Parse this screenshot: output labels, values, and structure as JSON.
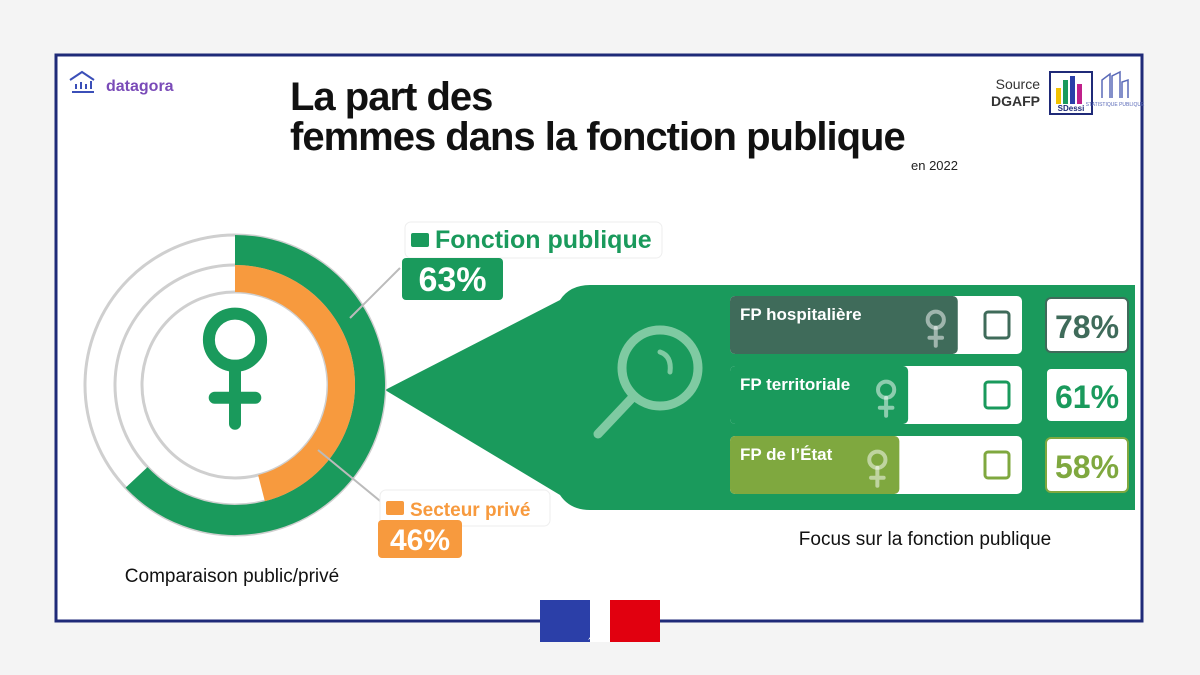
{
  "brand": "datagora",
  "title": {
    "line1": "La part des",
    "line2": "femmes dans la fonction publique",
    "subtitle": "en 2022"
  },
  "source": {
    "label": "Source",
    "name": "DGAFP",
    "logo": "SDessi",
    "logo2": "STATISTIQUE PUBLIQUE"
  },
  "chart_data": [
    {
      "type": "donut",
      "caption": "Comparaison public/privé",
      "ylim": [
        0,
        100
      ],
      "series": [
        {
          "name": "Fonction publique",
          "color": "#1a9a5c",
          "values": [
            63
          ],
          "value_labels": [
            "63%"
          ]
        },
        {
          "name": "Secteur privé",
          "color": "#f79a3e",
          "values": [
            46
          ],
          "value_labels": [
            "46%"
          ]
        }
      ]
    },
    {
      "type": "bar",
      "caption": "Focus sur la fonction publique",
      "xlim": [
        0,
        100
      ],
      "categories": [
        "FP hospitalière",
        "FP territoriale",
        "FP de l’État"
      ],
      "values": [
        78,
        61,
        58
      ],
      "value_labels": [
        "78%",
        "61%",
        "58%"
      ],
      "colors": [
        "#3f6b5a",
        "#1a9a5c",
        "#7fa83f"
      ]
    }
  ]
}
